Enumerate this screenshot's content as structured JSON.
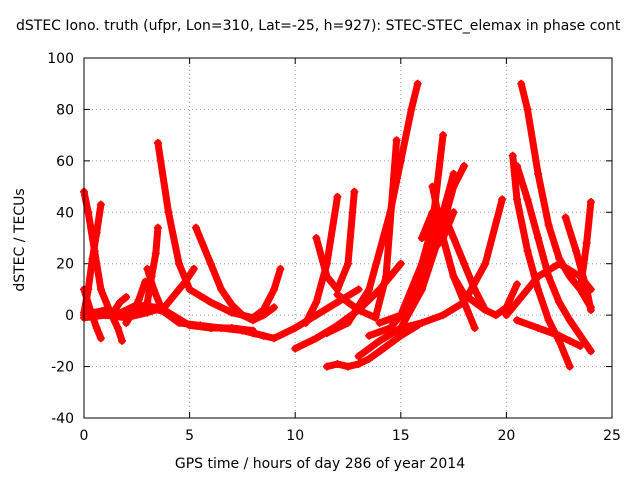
{
  "chart_data": {
    "type": "scatter",
    "title": "dSTEC Iono. truth (ufpr, Lon=310, Lat=-25, h=927): STEC-STEC_elemax in phase cont",
    "xlabel": "GPS time / hours of day 286 of year 2014",
    "ylabel": "dSTEC  / TECUs",
    "xlim": [
      0,
      25
    ],
    "ylim": [
      -40,
      100
    ],
    "x_ticks": [
      "0",
      "5",
      "10",
      "15",
      "20",
      "25"
    ],
    "y_ticks": [
      "-40",
      "-20",
      "0",
      "20",
      "40",
      "60",
      "80",
      "100"
    ],
    "grid": true,
    "marker": "+",
    "colors": {
      "series": "#ff0000",
      "grid": "#a0a0a0",
      "axis": "#000000"
    },
    "series": [
      {
        "x": [
          0.0,
          0.3,
          0.6,
          0.8
        ],
        "y": [
          10,
          2,
          -5,
          -9
        ]
      },
      {
        "x": [
          0.0,
          0.2,
          0.5,
          0.8,
          1.2,
          1.6,
          1.8
        ],
        "y": [
          48,
          40,
          25,
          10,
          2,
          -5,
          -10
        ]
      },
      {
        "x": [
          0.0,
          0.2,
          0.4,
          0.6,
          0.8
        ],
        "y": [
          1,
          10,
          22,
          32,
          43
        ]
      },
      {
        "x": [
          0.0,
          0.5,
          1.0,
          1.3,
          1.7,
          2.0
        ],
        "y": [
          0,
          1,
          2,
          0,
          5,
          7
        ]
      },
      {
        "x": [
          2.0,
          2.3,
          2.6,
          2.9
        ],
        "y": [
          -3,
          1,
          6,
          13
        ]
      },
      {
        "x": [
          3.0,
          3.3,
          3.6
        ],
        "y": [
          18,
          10,
          4
        ]
      },
      {
        "x": [
          3.0,
          3.2,
          3.4,
          3.5
        ],
        "y": [
          5,
          15,
          24,
          34
        ]
      },
      {
        "x": [
          0.0,
          1.0,
          2.0,
          3.0,
          3.8,
          4.3,
          4.8,
          5.2
        ],
        "y": [
          -1,
          0,
          -1,
          1,
          3,
          8,
          13,
          18
        ]
      },
      {
        "x": [
          3.5,
          4.0,
          4.5,
          5.0,
          6.0,
          7.0,
          8.0,
          8.5,
          9.0,
          9.3
        ],
        "y": [
          67,
          40,
          20,
          10,
          5,
          1,
          -1,
          2,
          10,
          18
        ]
      },
      {
        "x": [
          2.0,
          3.0,
          4.0,
          5.0,
          6.0,
          7.0,
          8.0
        ],
        "y": [
          0,
          3,
          1,
          -4,
          -5,
          -5,
          -6
        ]
      },
      {
        "x": [
          1.5,
          2.5,
          3.5,
          4.5,
          5.5,
          6.5,
          7.5,
          8.5
        ],
        "y": [
          0,
          4,
          3,
          -3,
          -4,
          -5,
          -6,
          -8
        ]
      },
      {
        "x": [
          5.3,
          6.0,
          6.5,
          7.0,
          7.5,
          8.0,
          8.5,
          9.0
        ],
        "y": [
          34,
          20,
          10,
          4,
          0,
          -2,
          0,
          3
        ]
      },
      {
        "x": [
          8.0,
          9.0,
          10.0,
          11.0,
          12.0,
          13.0
        ],
        "y": [
          -7,
          -9,
          -5,
          0,
          5,
          10
        ]
      },
      {
        "x": [
          10.0,
          11.0,
          12.0,
          13.0,
          14.0,
          15.0
        ],
        "y": [
          -13,
          -9,
          -4,
          2,
          10,
          20
        ]
      },
      {
        "x": [
          11.5,
          12.0,
          12.5,
          13.0,
          13.5,
          14.0,
          15.0,
          15.8
        ],
        "y": [
          -20,
          -19,
          -20,
          -19,
          -17,
          -14,
          -8,
          -4
        ]
      },
      {
        "x": [
          10.5,
          11.0,
          11.5,
          12.0
        ],
        "y": [
          -3,
          5,
          20,
          46
        ]
      },
      {
        "x": [
          11.0,
          11.5,
          12.0,
          12.5,
          12.8
        ],
        "y": [
          30,
          15,
          10,
          20,
          48
        ]
      },
      {
        "x": [
          11.5,
          12.5,
          13.5,
          14.5,
          15.0,
          15.5,
          15.8
        ],
        "y": [
          -7,
          -3,
          10,
          40,
          60,
          80,
          90
        ]
      },
      {
        "x": [
          12.0,
          13.0,
          13.8,
          14.3,
          14.8
        ],
        "y": [
          8,
          2,
          -1,
          15,
          68
        ]
      },
      {
        "x": [
          13.5,
          14.5,
          15.5,
          16.5,
          17.0
        ],
        "y": [
          -8,
          -5,
          5,
          35,
          70
        ]
      },
      {
        "x": [
          14.0,
          15.0,
          16.0,
          17.0,
          17.5,
          18.0
        ],
        "y": [
          -3,
          0,
          10,
          35,
          50,
          58
        ]
      },
      {
        "x": [
          13.0,
          14.0,
          15.0,
          16.0,
          17.0,
          17.5
        ],
        "y": [
          -16,
          -10,
          -5,
          10,
          40,
          55
        ]
      },
      {
        "x": [
          15.0,
          16.0,
          17.0,
          17.5
        ],
        "y": [
          0,
          20,
          30,
          40
        ]
      },
      {
        "x": [
          16.0,
          16.5,
          17.0,
          17.5,
          18.0,
          18.5
        ],
        "y": [
          30,
          40,
          30,
          15,
          5,
          -5
        ]
      },
      {
        "x": [
          15.0,
          16.0,
          17.0,
          18.0,
          19.0,
          19.8
        ],
        "y": [
          -5,
          -3,
          0,
          5,
          20,
          45
        ]
      },
      {
        "x": [
          16.5,
          17.0,
          17.5,
          18.0,
          19.0,
          19.5,
          20.0,
          20.5
        ],
        "y": [
          50,
          30,
          15,
          8,
          2,
          0,
          3,
          12
        ]
      },
      {
        "x": [
          16.0,
          16.5,
          17.0,
          17.5,
          18.0,
          18.5,
          19.0
        ],
        "y": [
          30,
          35,
          40,
          30,
          20,
          10,
          2
        ]
      },
      {
        "x": [
          20.3,
          20.5,
          21.0,
          21.5,
          22.0,
          22.5,
          23.0
        ],
        "y": [
          62,
          45,
          25,
          10,
          -2,
          -10,
          -20
        ]
      },
      {
        "x": [
          20.5,
          21.0,
          21.5,
          22.0,
          22.5,
          23.0,
          24.0
        ],
        "y": [
          58,
          45,
          30,
          15,
          5,
          -2,
          -14
        ]
      },
      {
        "x": [
          20.7,
          21.0,
          21.5,
          22.0,
          22.5,
          23.0,
          23.5,
          24.0
        ],
        "y": [
          90,
          80,
          55,
          35,
          22,
          15,
          10,
          3
        ]
      },
      {
        "x": [
          20.0,
          20.5,
          21.5,
          22.5,
          23.5,
          24.0
        ],
        "y": [
          0,
          5,
          15,
          20,
          15,
          10
        ]
      },
      {
        "x": [
          20.5,
          21.5,
          22.5,
          23.0,
          23.5
        ],
        "y": [
          -2,
          -5,
          -8,
          -10,
          -12
        ]
      },
      {
        "x": [
          22.8,
          23.3,
          23.8,
          24.0
        ],
        "y": [
          38,
          25,
          10,
          2
        ]
      },
      {
        "x": [
          23.5,
          23.8,
          24.0
        ],
        "y": [
          10,
          28,
          44
        ]
      }
    ]
  }
}
